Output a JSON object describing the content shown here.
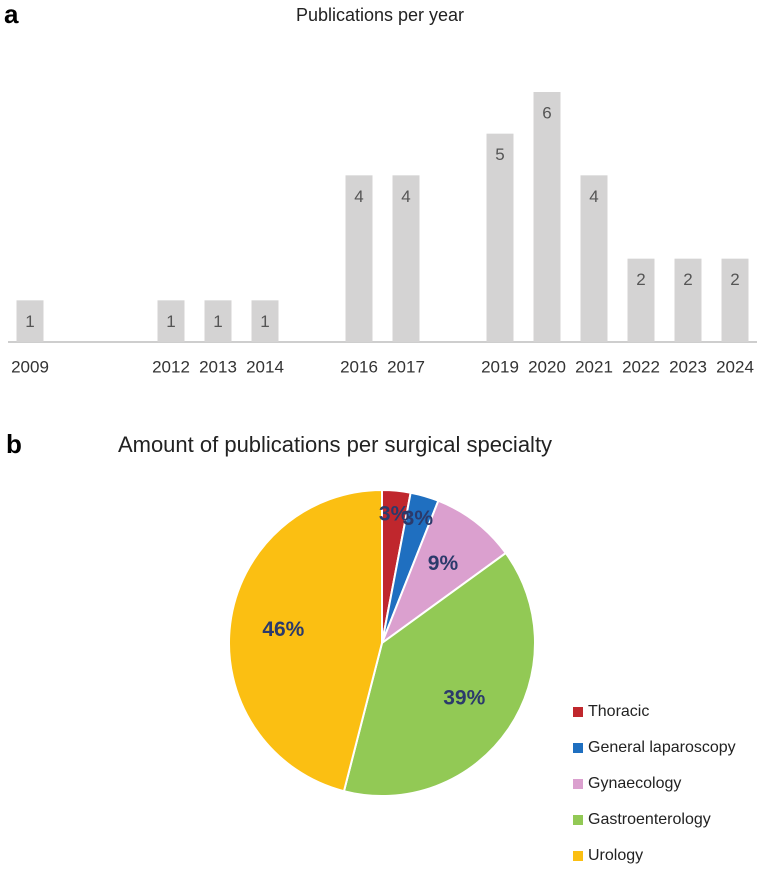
{
  "chart_data": [
    {
      "type": "bar",
      "panel": "a",
      "title": "Publications per year",
      "categories": [
        "2009",
        null,
        null,
        "2012",
        "2013",
        "2014",
        null,
        "2016",
        "2017",
        null,
        "2019",
        "2020",
        "2021",
        "2022",
        "2023",
        "2024"
      ],
      "values": [
        1,
        null,
        null,
        1,
        1,
        1,
        null,
        4,
        4,
        null,
        5,
        6,
        4,
        2,
        2,
        2
      ],
      "color": "#d4d3d3"
    },
    {
      "type": "pie",
      "panel": "b",
      "title": "Amount of publications per surgical specialty",
      "categories": [
        "Thoracic",
        "General laparoscopy",
        "Gynaecology",
        "Gastroenterology",
        "Urology"
      ],
      "values": [
        3,
        3,
        9,
        39,
        46
      ],
      "value_labels": [
        "3%",
        "3%",
        "9%",
        "39%",
        "46%"
      ],
      "colors": [
        "#c0272d",
        "#1f6fc0",
        "#dba0cf",
        "#92c955",
        "#fbbf12"
      ]
    }
  ]
}
